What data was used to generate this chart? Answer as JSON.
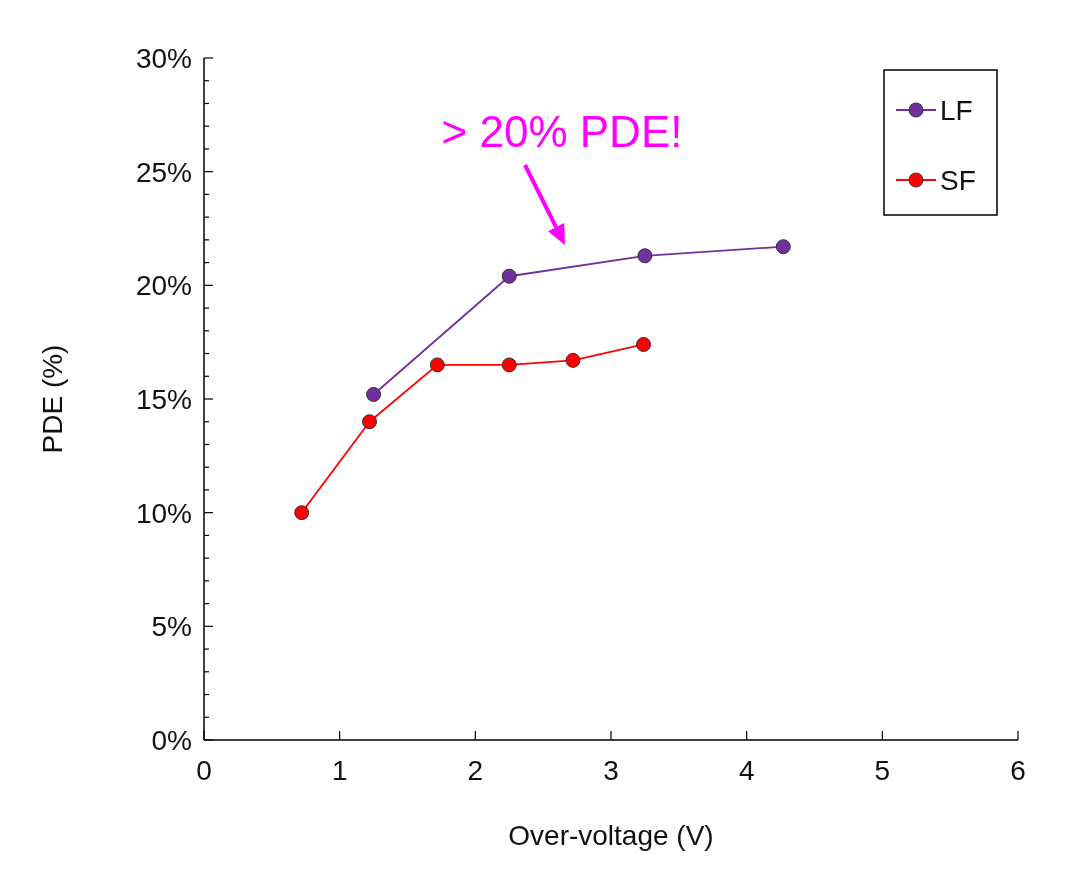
{
  "chart_data": {
    "type": "line",
    "xlabel": "Over-voltage (V)",
    "ylabel": "PDE (%)",
    "xlim": [
      0,
      6
    ],
    "xticks": [
      0,
      1,
      2,
      3,
      4,
      5,
      6
    ],
    "ylim": [
      0,
      30
    ],
    "yticks": [
      {
        "value": 0,
        "label": "0%"
      },
      {
        "value": 1,
        "label": null
      },
      {
        "value": 2,
        "label": null
      },
      {
        "value": 3,
        "label": null
      },
      {
        "value": 4,
        "label": null
      },
      {
        "value": 5,
        "label": "5%"
      },
      {
        "value": 6,
        "label": null
      },
      {
        "value": 7,
        "label": null
      },
      {
        "value": 8,
        "label": null
      },
      {
        "value": 9,
        "label": null
      },
      {
        "value": 10,
        "label": "10%"
      },
      {
        "value": 11,
        "label": null
      },
      {
        "value": 12,
        "label": null
      },
      {
        "value": 13,
        "label": null
      },
      {
        "value": 14,
        "label": null
      },
      {
        "value": 15,
        "label": "15%"
      },
      {
        "value": 16,
        "label": null
      },
      {
        "value": 17,
        "label": null
      },
      {
        "value": 18,
        "label": null
      },
      {
        "value": 19,
        "label": null
      },
      {
        "value": 20,
        "label": "20%"
      },
      {
        "value": 21,
        "label": null
      },
      {
        "value": 22,
        "label": null
      },
      {
        "value": 23,
        "label": null
      },
      {
        "value": 24,
        "label": null
      },
      {
        "value": 25,
        "label": "25%"
      },
      {
        "value": 26,
        "label": null
      },
      {
        "value": 27,
        "label": null
      },
      {
        "value": 28,
        "label": null
      },
      {
        "value": 29,
        "label": null
      },
      {
        "value": 30,
        "label": "30%"
      }
    ],
    "series": [
      {
        "name": "LF",
        "color": "#7030a0",
        "x": [
          1.25,
          2.25,
          3.25,
          4.27
        ],
        "values": [
          15.2,
          20.4,
          21.3,
          21.7
        ]
      },
      {
        "name": "SF",
        "color": "#ff0000",
        "x": [
          0.72,
          1.22,
          1.72,
          2.25,
          2.72,
          3.24
        ],
        "values": [
          10.0,
          14.0,
          16.5,
          16.5,
          16.7,
          17.4
        ]
      }
    ],
    "annotations": [
      "> 20% PDE!"
    ],
    "marker": "circle",
    "line_style": "solid",
    "legend": "top right",
    "grid": false
  }
}
